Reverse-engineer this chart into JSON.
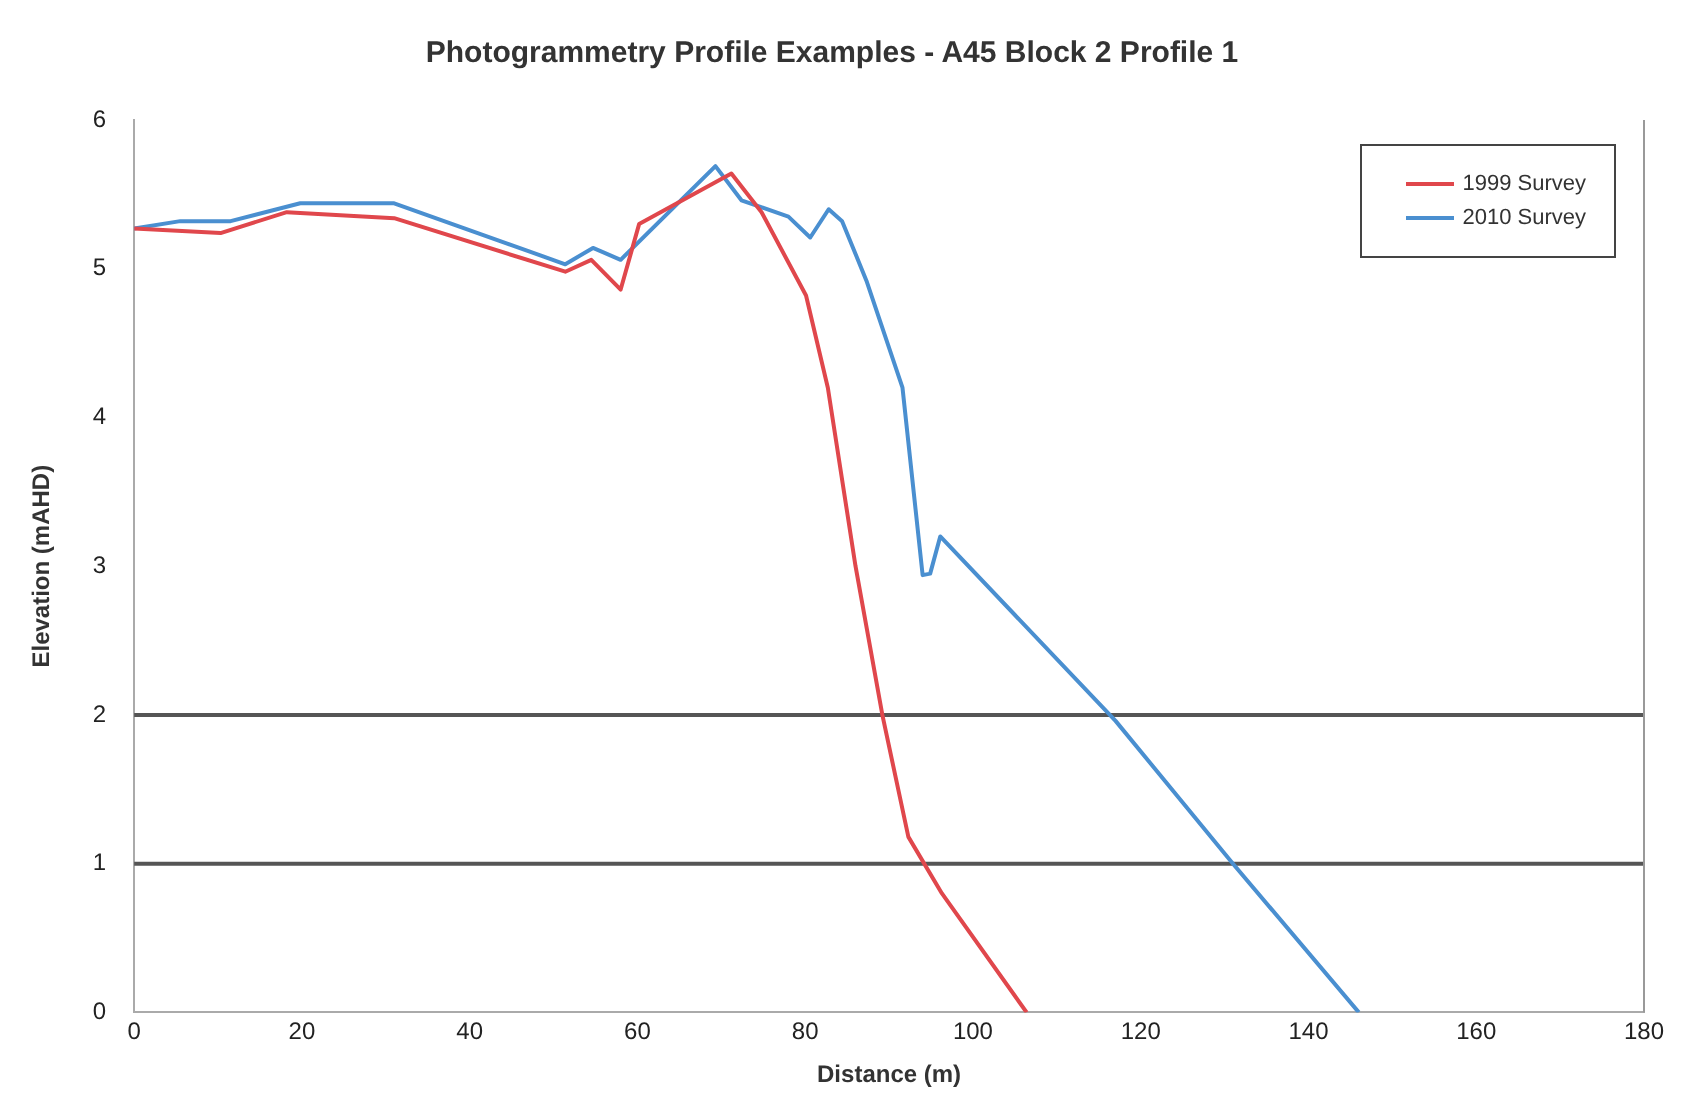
{
  "chart_data": {
    "type": "line",
    "title": "Photogrammetry Profile Examples - A45 Block 2 Profile 1",
    "xlabel": "Distance (m)",
    "ylabel": "Elevation (mAHD)",
    "series": [
      {
        "name": "1999 Survey",
        "color": "#e0474c",
        "x": [
          0,
          10.3,
          18.2,
          31,
          51.4,
          54.5,
          58,
          60.2,
          71.2,
          74.8,
          80.1,
          82.7,
          86,
          89.2,
          92.3,
          96.3,
          106.4
        ],
        "values": [
          5.27,
          5.24,
          5.38,
          5.34,
          4.98,
          5.06,
          4.86,
          5.3,
          5.64,
          5.38,
          4.82,
          4.2,
          3.0,
          2.0,
          1.18,
          0.8,
          0
        ]
      },
      {
        "name": "2010 Survey",
        "color": "#4a8fd0",
        "x": [
          0,
          5.5,
          11.5,
          19.8,
          31,
          51.4,
          54.7,
          58,
          69.3,
          72.4,
          78,
          80.6,
          82.8,
          84.4,
          87.3,
          91.6,
          94,
          94.9,
          96.1,
          117,
          131,
          146
        ],
        "values": [
          5.27,
          5.32,
          5.32,
          5.44,
          5.44,
          5.03,
          5.14,
          5.06,
          5.69,
          5.46,
          5.35,
          5.21,
          5.4,
          5.32,
          4.92,
          4.2,
          2.94,
          2.95,
          3.2,
          1.96,
          1.0,
          0
        ]
      }
    ],
    "xlim": [
      0,
      180
    ],
    "xticks": [
      0,
      20,
      40,
      60,
      80,
      100,
      120,
      140,
      160,
      180
    ],
    "ylim": [
      0,
      6
    ],
    "yticks": [
      0,
      1,
      2,
      3,
      4,
      5,
      6
    ],
    "ref_lines": [
      {
        "axis": "y",
        "value": 1,
        "color": "#555555"
      },
      {
        "axis": "y",
        "value": 2,
        "color": "#555555"
      }
    ],
    "grid": false,
    "legend": "top right",
    "marker": "none",
    "line_style": "solid"
  }
}
